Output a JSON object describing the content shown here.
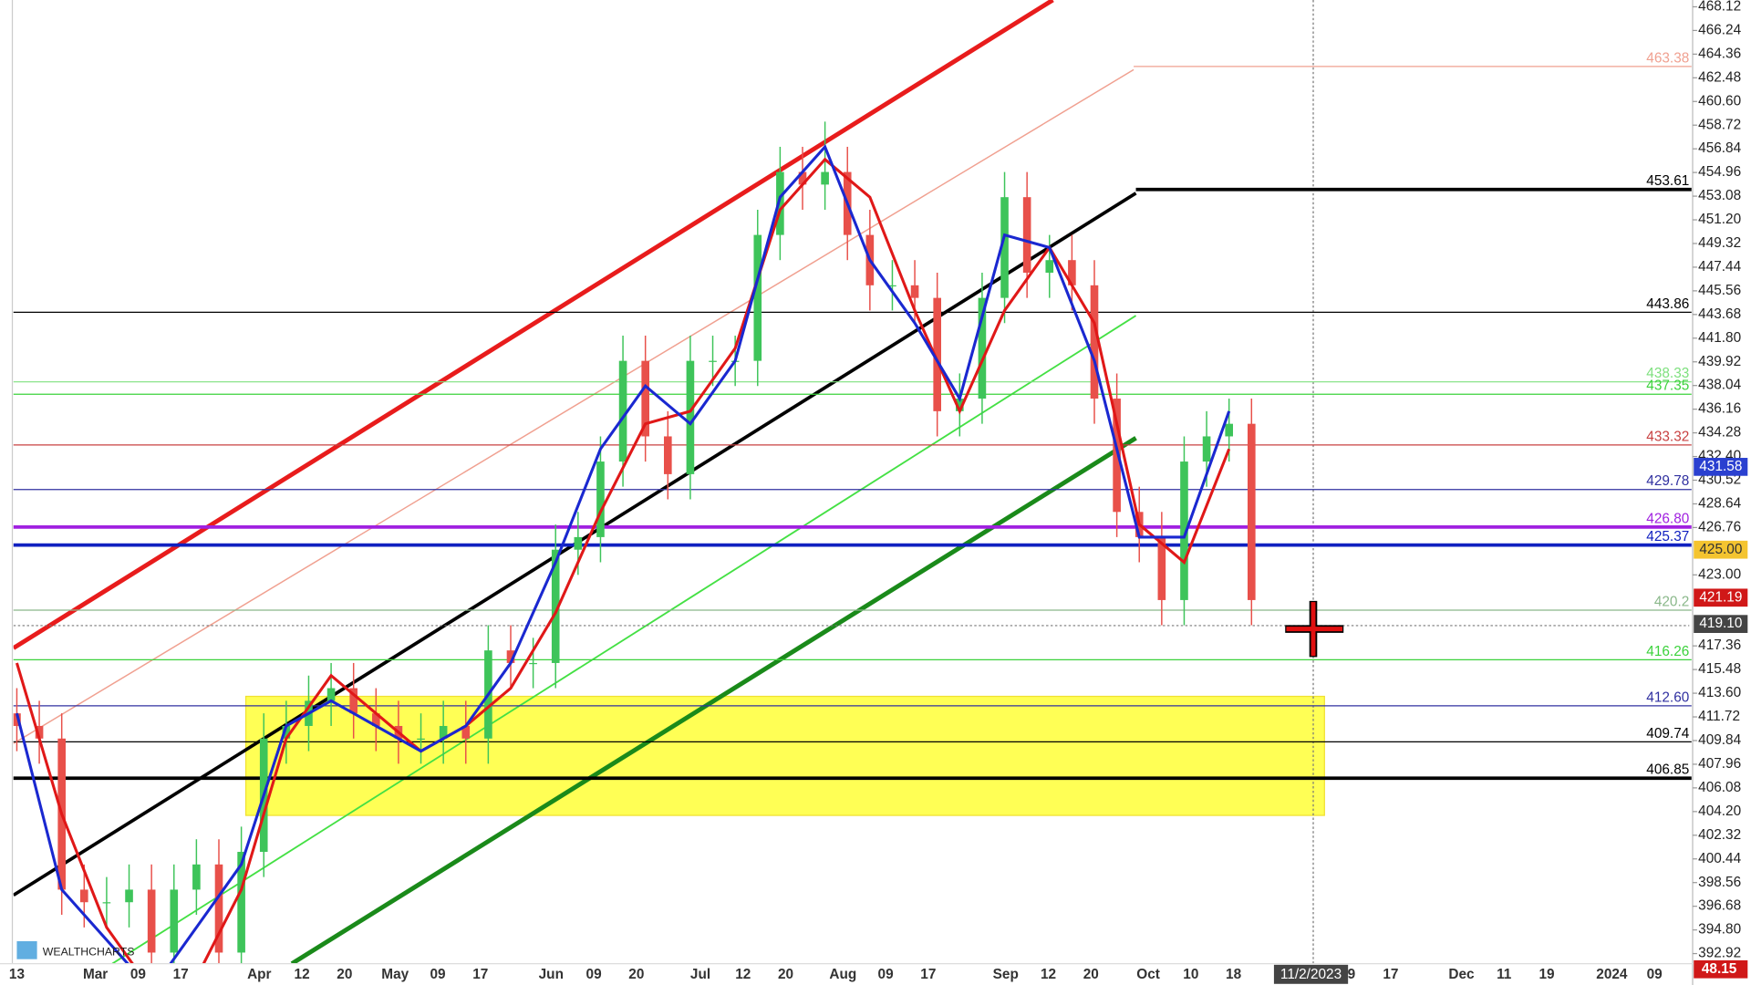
{
  "chart_data": {
    "type": "candlestick",
    "open": [
      412,
      411,
      410,
      398,
      397,
      397,
      398,
      393,
      398,
      400,
      393,
      401,
      410,
      411,
      413,
      414,
      412,
      411,
      410,
      410,
      411,
      410,
      417,
      416,
      416,
      425,
      426,
      432,
      440,
      434,
      431,
      440,
      440,
      440,
      450,
      455,
      454,
      455,
      450,
      446,
      446,
      445,
      436,
      437,
      445,
      453,
      447,
      448,
      446,
      437,
      428,
      426,
      421,
      432,
      434,
      435
    ],
    "high": [
      414,
      413,
      412,
      400,
      399,
      400,
      400,
      400,
      402,
      402,
      403,
      412,
      413,
      415,
      416,
      416,
      414,
      413,
      412,
      413,
      413,
      419,
      419,
      418,
      427,
      428,
      434,
      442,
      442,
      436,
      442,
      442,
      442,
      452,
      457,
      457,
      459,
      457,
      452,
      448,
      448,
      447,
      439,
      447,
      455,
      455,
      450,
      450,
      448,
      439,
      430,
      428,
      434,
      436,
      437,
      437
    ],
    "low": [
      409,
      408,
      396,
      395,
      395,
      395,
      391,
      391,
      396,
      391,
      391,
      399,
      408,
      409,
      411,
      410,
      409,
      408,
      408,
      408,
      408,
      408,
      414,
      414,
      414,
      423,
      424,
      430,
      432,
      429,
      429,
      438,
      438,
      438,
      448,
      452,
      452,
      448,
      444,
      444,
      443,
      434,
      434,
      435,
      443,
      445,
      445,
      444,
      435,
      426,
      424,
      419,
      419,
      430,
      432,
      419
    ],
    "close": [
      411,
      410,
      398,
      397,
      397,
      398,
      393,
      398,
      400,
      393,
      401,
      410,
      411,
      413,
      414,
      412,
      411,
      410,
      410,
      411,
      410,
      417,
      416,
      416,
      425,
      426,
      432,
      440,
      434,
      431,
      440,
      440,
      440,
      450,
      455,
      454,
      455,
      450,
      446,
      446,
      445,
      436,
      437,
      445,
      453,
      447,
      448,
      446,
      437,
      428,
      426,
      421,
      432,
      434,
      435,
      421
    ],
    "up_color": "#3ec45a",
    "down_color": "#e8504a",
    "moving_averages": [
      {
        "color": "#e01818",
        "values": [
          416,
          404,
          395,
          390,
          391,
          398,
          410,
          415,
          412,
          409,
          411,
          414,
          420,
          428,
          435,
          436,
          441,
          452,
          456,
          453,
          444,
          436,
          444,
          449,
          443,
          427,
          424,
          433
        ]
      },
      {
        "color": "#1a28d0",
        "values": [
          412,
          398,
          394,
          390,
          395,
          400,
          411,
          413,
          411,
          409,
          411,
          416,
          424,
          433,
          438,
          435,
          440,
          453,
          457,
          448,
          443,
          437,
          450,
          449,
          440,
          426,
          426,
          436
        ]
      }
    ],
    "ylim": [
      392.12,
      468.66
    ],
    "yticks": [
      468.12,
      466.24,
      464.36,
      462.48,
      {
        "value": 460.6,
        "label": "460.60"
      },
      458.72,
      456.84,
      454.96,
      453.08,
      {
        "value": 451.2,
        "label": "451.20"
      },
      449.32,
      447.44,
      445.56,
      443.68,
      {
        "value": 441.8,
        "label": "441.80"
      },
      439.92,
      438.04,
      436.16,
      434.28,
      {
        "value": 432.4,
        "label": "432.40"
      },
      430.52,
      428.64,
      426.76,
      {
        "value": 423,
        "label": "423.00"
      },
      417.36,
      415.48,
      {
        "value": 413.6,
        "label": "413.60"
      },
      411.72,
      409.84,
      407.96,
      406.08,
      {
        "value": 404.2,
        "label": "404.20"
      },
      402.32,
      400.44,
      398.56,
      396.68,
      {
        "value": 394.8,
        "label": "394.80"
      },
      392.92
    ],
    "x_labels": [
      "13",
      "Mar",
      "09",
      "17",
      "Apr",
      "12",
      "20",
      "May",
      "09",
      "17",
      "Jun",
      "09",
      "20",
      "Jul",
      "12",
      "20",
      "Aug",
      "09",
      "17",
      "Sep",
      "12",
      "20",
      "Oct",
      "10",
      "18",
      "9",
      "17",
      "Dec",
      "11",
      "19",
      "2024",
      "09"
    ],
    "levels": [
      {
        "value": 463.38,
        "label": "463.38",
        "color": "#f0a090"
      },
      {
        "value": 453.61,
        "label": "453.61",
        "color": "#000000"
      },
      {
        "value": 443.86,
        "label": "443.86",
        "color": "#000000"
      },
      {
        "value": 438.33,
        "label": "438.33",
        "color": "#7ee07e"
      },
      {
        "value": 437.35,
        "label": "437.35",
        "color": "#3cd23c"
      },
      {
        "value": 433.32,
        "label": "433.32",
        "color": "#c84040"
      },
      {
        "value": 429.78,
        "label": "429.78",
        "color": "#3030a0"
      },
      {
        "value": 426.8,
        "label": "426.80",
        "color": "#a020e0"
      },
      {
        "value": 425.37,
        "label": "425.37",
        "color": "#1020c0"
      },
      {
        "value": 420.2,
        "label": "420.2",
        "color": "#8ab88a"
      },
      {
        "value": 416.26,
        "label": "416.26",
        "color": "#3cd23c"
      },
      {
        "value": 412.6,
        "label": "412.60",
        "color": "#3030a0"
      },
      {
        "value": 409.74,
        "label": "409.74",
        "color": "#000000"
      },
      {
        "value": 406.85,
        "label": "406.85",
        "color": "#000000"
      }
    ],
    "badges": [
      {
        "value": 431.58,
        "color": "#2a40d0"
      },
      {
        "value": 425,
        "label": "425.00",
        "color": "#f4c430"
      },
      {
        "value": 421.19,
        "color": "#d01818"
      },
      {
        "value": 419.1,
        "label": "419.10",
        "color": "#444444"
      }
    ],
    "bottom_badge": {
      "value": 48.15,
      "color": "#d01818"
    },
    "crosshair_label": "11/2/2023",
    "watermark": "WEALTHCHARTS"
  }
}
